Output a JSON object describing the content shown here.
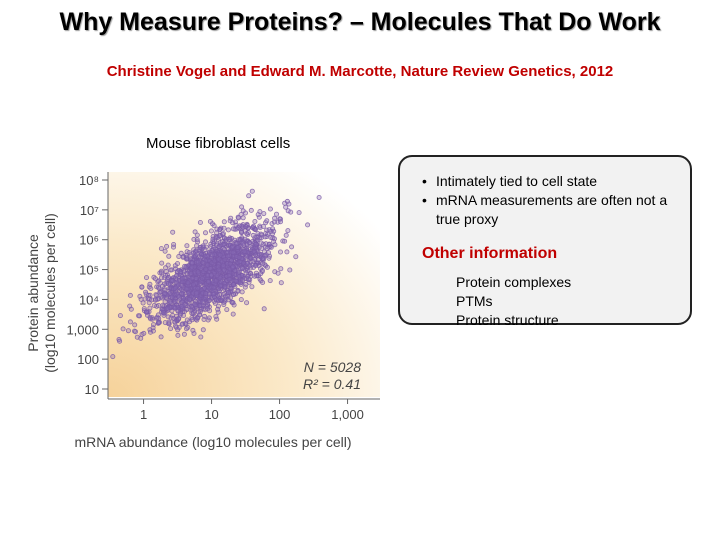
{
  "slide": {
    "title": "Why Measure Proteins? – Molecules That Do Work",
    "citation": "Christine Vogel and Edward M. Marcotte, Nature Review Genetics, 2012",
    "caption": "Mouse fibroblast cells"
  },
  "infobox": {
    "bullets": [
      "Intimately tied to cell state",
      "mRNA measurements are often not a true proxy"
    ],
    "other_title": "Other information",
    "other_items": [
      "Protein complexes",
      "PTMs",
      "Protein structure"
    ]
  },
  "colors": {
    "title_red": "#c00000",
    "point": "#7a5aa8",
    "point_fill": "#8a6cb8",
    "background_warm": "#f8dcae"
  },
  "chart_data": {
    "type": "scatter",
    "xlabel": "mRNA abundance (log10 molecules per cell)",
    "ylabel_line1": "Protein abundance",
    "ylabel_line2": "(log10 molecules per cell)",
    "x_scale": "log",
    "y_scale": "log",
    "xlim": [
      0.3,
      3000
    ],
    "ylim": [
      10,
      100000000
    ],
    "x_ticks": [
      {
        "value": 1,
        "label": "1"
      },
      {
        "value": 10,
        "label": "10"
      },
      {
        "value": 100,
        "label": "100"
      },
      {
        "value": 1000,
        "label": "1,000"
      }
    ],
    "y_ticks": [
      {
        "value": 10,
        "label": "10"
      },
      {
        "value": 100,
        "label": "100"
      },
      {
        "value": 1000,
        "label": "1,000"
      },
      {
        "value": 10000,
        "label": "10⁴"
      },
      {
        "value": 100000,
        "label": "10⁵"
      },
      {
        "value": 1000000,
        "label": "10⁶"
      },
      {
        "value": 10000000,
        "label": "10⁷"
      },
      {
        "value": 100000000,
        "label": "10⁸"
      }
    ],
    "annotation_n": "N = 5028",
    "annotation_r2": "R² = 0.41",
    "n": 5028,
    "r_squared": 0.41,
    "cloud": {
      "center_log10_mrna": 1.0,
      "center_log10_protein": 4.85,
      "sd_log10_mrna": 0.45,
      "sd_log10_protein": 0.8
    },
    "grid": false
  }
}
